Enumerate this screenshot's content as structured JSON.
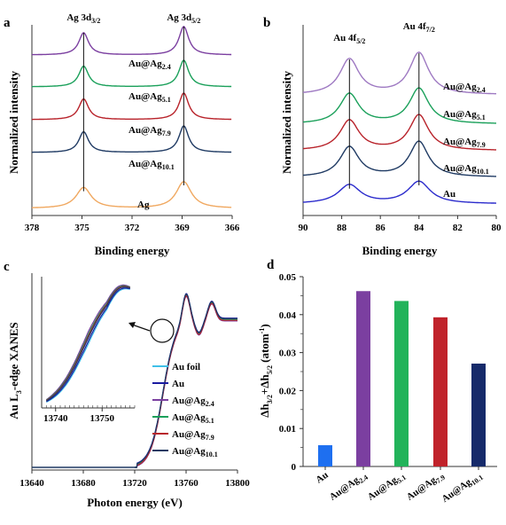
{
  "chart_data": [
    {
      "panel": "a",
      "type": "line",
      "xlabel": "Binding energy",
      "ylabel": "Normalized  intensity",
      "xlim": [
        378,
        366
      ],
      "xticks": [
        378,
        375,
        372,
        369,
        366
      ],
      "peak_labels": [
        {
          "main": "Ag 3d",
          "sub": "3/2",
          "x": 374.9
        },
        {
          "main": "Ag 3d",
          "sub": "5/2",
          "x": 368.9
        }
      ],
      "peaks": [
        374.9,
        368.9
      ],
      "series": [
        {
          "main": "Au@Ag",
          "sub": "2.4",
          "color": "#7b3fa0"
        },
        {
          "main": "Au@Ag",
          "sub": "5.1",
          "color": "#1aa05a"
        },
        {
          "main": "Au@Ag",
          "sub": "7.9",
          "color": "#b8222a"
        },
        {
          "main": "Au@Ag",
          "sub": "10.1",
          "color": "#1f3a63"
        },
        {
          "main": "Ag",
          "sub": "",
          "color": "#f0a860"
        }
      ]
    },
    {
      "panel": "b",
      "type": "line",
      "xlabel": "Binding energy",
      "ylabel": "Normalized  intensity",
      "xlim": [
        90,
        80
      ],
      "xticks": [
        90,
        88,
        86,
        84,
        82,
        80
      ],
      "peak_labels": [
        {
          "main": "Au 4f",
          "sub": "5/2",
          "x": 87.6
        },
        {
          "main": "Au 4f",
          "sub": "7/2",
          "x": 84.0
        }
      ],
      "peaks": [
        87.6,
        84.0
      ],
      "series": [
        {
          "main": "Au@Ag",
          "sub": "2.4",
          "color": "#9e79c2"
        },
        {
          "main": "Au@Ag",
          "sub": "5.1",
          "color": "#1aa05a"
        },
        {
          "main": "Au@Ag",
          "sub": "7.9",
          "color": "#b8222a"
        },
        {
          "main": "Au@Ag",
          "sub": "10.1",
          "color": "#1f3a63"
        },
        {
          "main": "Au",
          "sub": "",
          "color": "#2b2bcc"
        }
      ]
    },
    {
      "panel": "c",
      "type": "line",
      "xlabel": "Photon energy (eV)",
      "ylabel": "Au L",
      "ylabel_sub": "3",
      "ylabel_tail": "-edge XANES",
      "xlim": [
        13640,
        13800
      ],
      "xticks": [
        13640,
        13680,
        13720,
        13760,
        13800
      ],
      "inset_xticks": [
        13740,
        13750
      ],
      "series": [
        {
          "main": "Au foil",
          "sub": "",
          "color": "#3fc0e8"
        },
        {
          "main": "Au",
          "sub": "",
          "color": "#1a1aa0"
        },
        {
          "main": "Au@Ag",
          "sub": "2.4",
          "color": "#7b3fa0"
        },
        {
          "main": "Au@Ag",
          "sub": "5.1",
          "color": "#1aa05a"
        },
        {
          "main": "Au@Ag",
          "sub": "7.9",
          "color": "#b8222a"
        },
        {
          "main": "Au@Ag",
          "sub": "10.1",
          "color": "#1f3a63"
        }
      ]
    },
    {
      "panel": "d",
      "type": "bar",
      "ylabel": "Δh 3/2+Δh 5/2 (atom⁻¹)",
      "ylim": [
        0,
        0.05
      ],
      "yticks": [
        "0",
        "0.01",
        "0.02",
        "0.03",
        "0.04",
        "0.05"
      ],
      "categories": [
        {
          "main": "Au",
          "sub": ""
        },
        {
          "main": "Au@Ag",
          "sub": "2.4"
        },
        {
          "main": "Au@Ag",
          "sub": "5.1"
        },
        {
          "main": "Au@Ag",
          "sub": "7.9"
        },
        {
          "main": "Au@Ag",
          "sub": "10.1"
        }
      ],
      "values": [
        0.0056,
        0.0462,
        0.0436,
        0.0393,
        0.0271
      ],
      "colors": [
        "#1e6ff0",
        "#7b3fa0",
        "#22b35a",
        "#c0222a",
        "#162a6a"
      ]
    }
  ],
  "panel_letters": [
    "a",
    "b",
    "c",
    "d"
  ],
  "d_ylabel_parts": {
    "delta1": "Δh",
    "s1": "3/2",
    "plus": "+Δh",
    "s2": "5/2",
    "unit": " (atom",
    "sup": "-1",
    "close": ")"
  }
}
